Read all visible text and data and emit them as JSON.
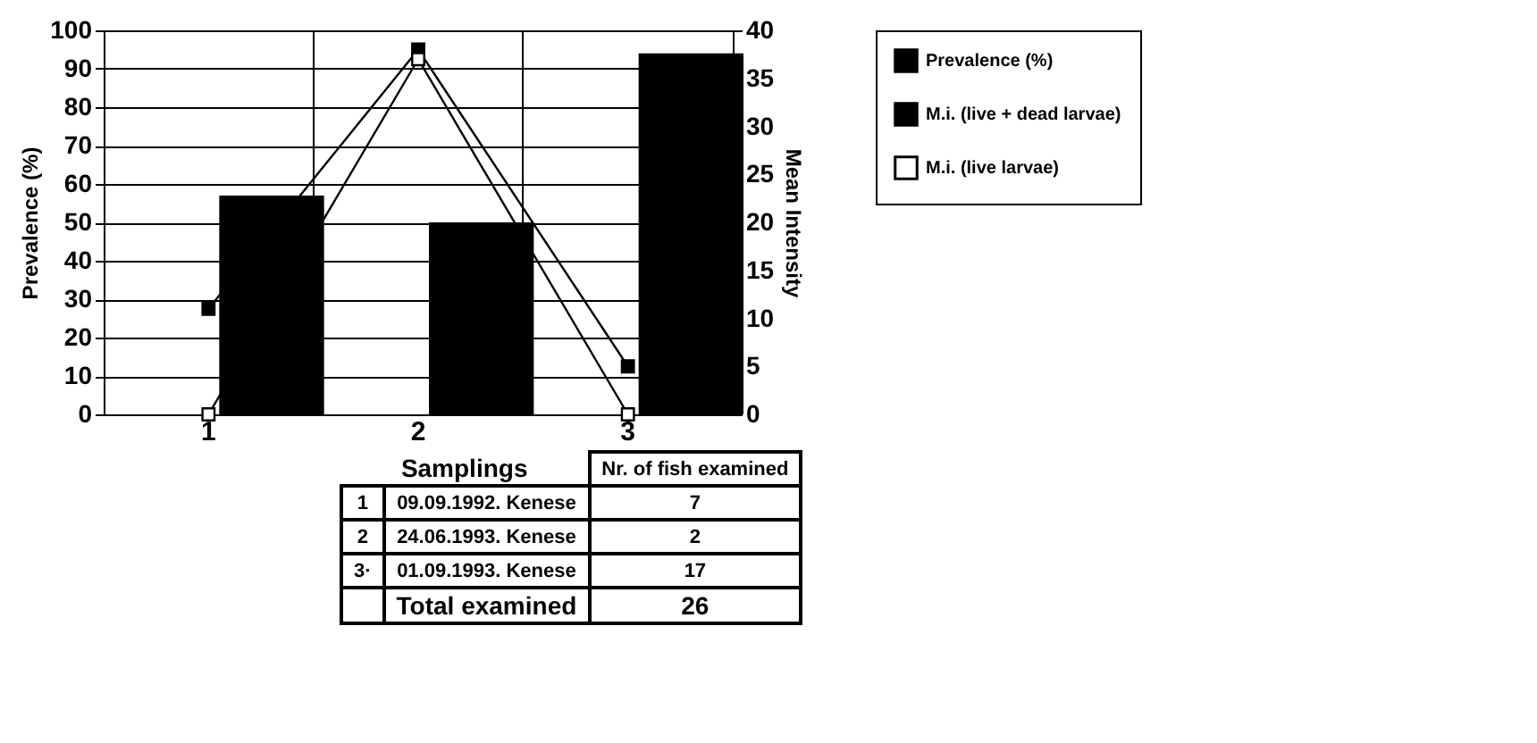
{
  "chart_data": {
    "type": "bar",
    "categories": [
      "1",
      "2",
      "3"
    ],
    "ylabel": "Prevalence (%)",
    "y2label": "Mean Intensity",
    "ylim": [
      0,
      100
    ],
    "yticks": [
      0,
      10,
      20,
      30,
      40,
      50,
      60,
      70,
      80,
      90,
      100
    ],
    "y2lim": [
      0,
      40
    ],
    "y2ticks": [
      0,
      5,
      10,
      15,
      20,
      25,
      30,
      35,
      40
    ],
    "series": [
      {
        "name": "Prevalence (%)",
        "color": "#000000",
        "values": [
          57,
          50,
          94
        ]
      },
      {
        "name": "M.i. (live + dead larvae)",
        "type": "line",
        "axis": "y2",
        "color": "#000000",
        "values": [
          11,
          38,
          5
        ]
      },
      {
        "name": "M.i. (live larvae)",
        "type": "line",
        "axis": "y2",
        "color": "#000000",
        "values": [
          0,
          37,
          0
        ]
      }
    ],
    "marker": "square",
    "grid": true,
    "legend": "right",
    "annotations": [
      "Samplings",
      "Nr. of fish examined",
      "1",
      "09.09.1992. Kenese",
      "7",
      "2",
      "24.06.1993. Kenese",
      "2",
      "3·",
      "01.09.1993. Kenese",
      "17",
      "Total examined",
      "26"
    ]
  }
}
